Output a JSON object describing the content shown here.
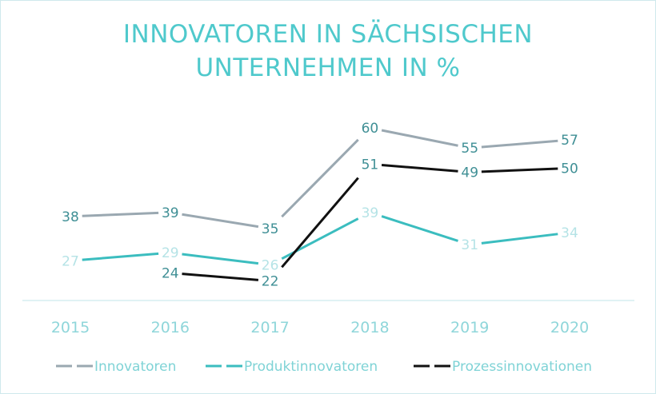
{
  "chart_data": {
    "type": "line",
    "title_lines": [
      "INNOVATOREN IN SÄCHSISCHEN",
      "UNTERNEHMEN IN %"
    ],
    "categories": [
      "2015",
      "2016",
      "2017",
      "2018",
      "2019",
      "2020"
    ],
    "ylim": [
      0,
      70
    ],
    "grid": false,
    "legend_position": "bottom",
    "series": [
      {
        "name": "Innovatoren",
        "color": "#9aa8b1",
        "label_color": "#3f8f95",
        "values": [
          38,
          39,
          35,
          60,
          55,
          57
        ]
      },
      {
        "name": "Produktinnovatoren",
        "color": "#3bbdbf",
        "label_color": "#b5e3e6",
        "values": [
          27,
          29,
          26,
          39,
          31,
          34
        ]
      },
      {
        "name": "Prozessinnovationen",
        "color": "#111111",
        "label_color": "#3f8f95",
        "values": [
          null,
          24,
          22,
          51,
          49,
          50
        ]
      }
    ],
    "colors": {
      "title": "#4fc9cc",
      "tick_label": "#8fd6da",
      "legend_label": "#7fd3d6",
      "axis_line": "#d6eef0"
    }
  }
}
